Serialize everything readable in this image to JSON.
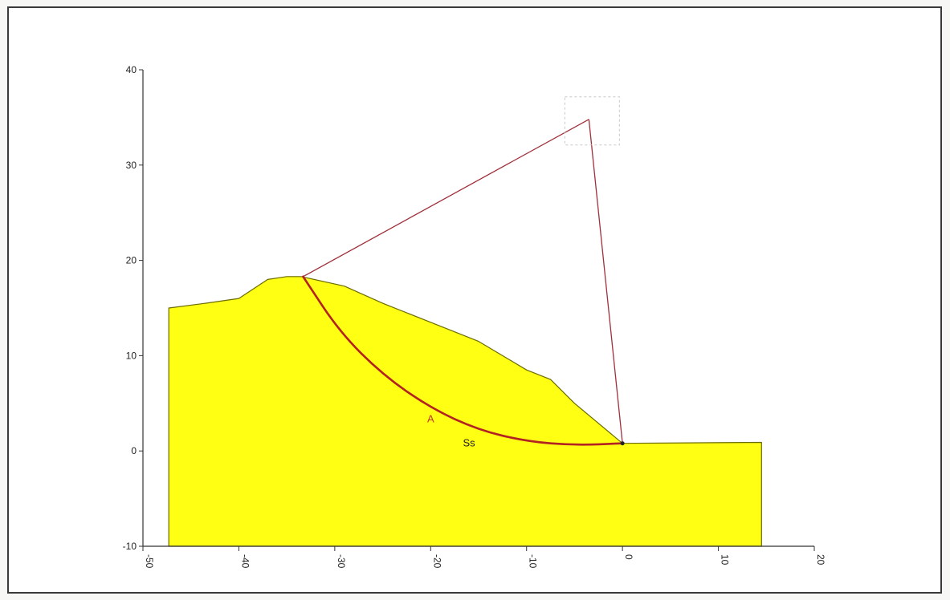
{
  "chart_data": {
    "type": "slope-stability-section",
    "xlim": [
      -50,
      20
    ],
    "ylim": [
      -10,
      40
    ],
    "x_ticks": [
      "-50",
      "-40",
      "-30",
      "-20",
      "-10",
      "0",
      "10",
      "20"
    ],
    "y_ticks": [
      "-10",
      "0",
      "10",
      "20",
      "30",
      "40"
    ],
    "x_tick_values": [
      -50,
      -40,
      -30,
      -20,
      -10,
      0,
      10,
      20
    ],
    "y_tick_values": [
      -10,
      0,
      10,
      20,
      30,
      40
    ],
    "ground_profile": [
      [
        -47.3,
        -10
      ],
      [
        -47.3,
        15.0
      ],
      [
        -43.5,
        15.5
      ],
      [
        -40.0,
        16.0
      ],
      [
        -37.0,
        18.0
      ],
      [
        -35.0,
        18.3
      ],
      [
        -33.5,
        18.3
      ],
      [
        -29.0,
        17.3
      ],
      [
        -25.0,
        15.5
      ],
      [
        -20.0,
        13.5
      ],
      [
        -15.0,
        11.5
      ],
      [
        -10.0,
        8.5
      ],
      [
        -7.5,
        7.5
      ],
      [
        -5.0,
        5.0
      ],
      [
        0,
        0.8
      ],
      [
        14.5,
        0.9
      ],
      [
        14.5,
        -10
      ]
    ],
    "slip_surface": [
      [
        -33.3,
        18.3
      ],
      [
        -29.5,
        12.5
      ],
      [
        -25.0,
        8.0
      ],
      [
        -20.0,
        4.5
      ],
      [
        -15.0,
        2.2
      ],
      [
        -10.0,
        1.0
      ],
      [
        -5.0,
        0.6
      ],
      [
        0,
        0.8
      ]
    ],
    "slip_center": [
      -3.5,
      34.8
    ],
    "slip_entry": [
      -33.3,
      18.3
    ],
    "slip_exit": [
      0,
      0.8
    ],
    "annotations": [
      {
        "text": "A",
        "x": -20.0,
        "y": 3.0,
        "color": "#c0392b"
      },
      {
        "text": "Ss",
        "x": -16.0,
        "y": 0.5,
        "color": "#222222"
      }
    ],
    "colors": {
      "soil_fill": "#ffff14",
      "soil_stroke": "#6b6b00",
      "slip_curve": "#b22222",
      "radius_lines": "#a0303a",
      "axes": "#333333"
    }
  }
}
